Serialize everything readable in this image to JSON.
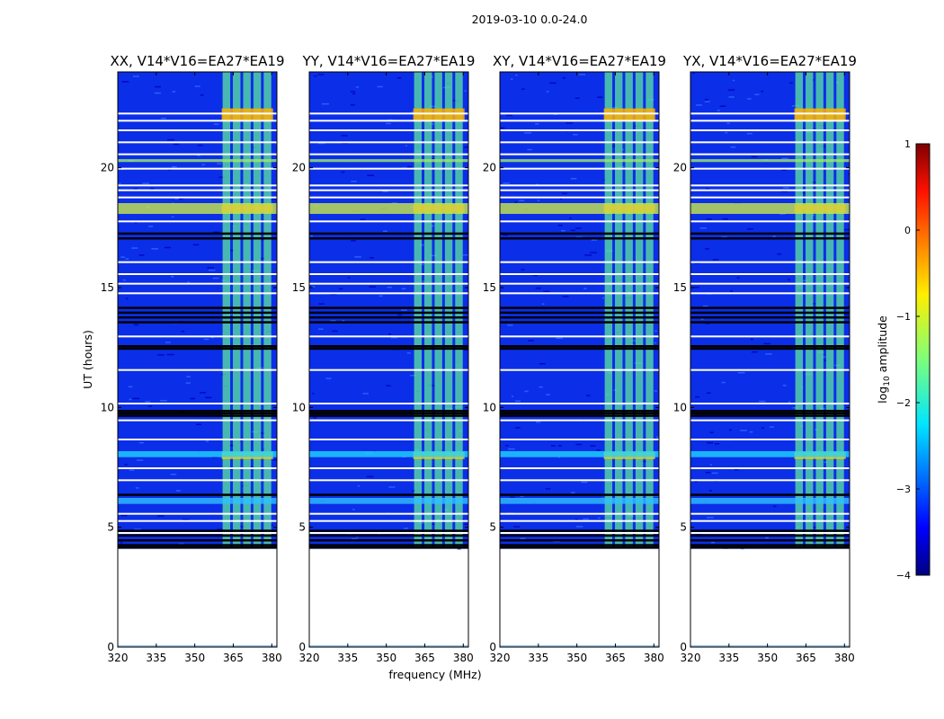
{
  "figure": {
    "suptitle": "2019-03-10 0.0-24.0",
    "xlabel": "frequency (MHz)",
    "ylabel": "UT (hours)"
  },
  "chart_data": {
    "type": "heatmap",
    "title": "2019-03-10 0.0-24.0",
    "xlabel": "frequency (MHz)",
    "ylabel": "UT (hours)",
    "xlim": [
      320,
      382
    ],
    "ylim": [
      0,
      24
    ],
    "x_ticks": [
      320,
      335,
      350,
      365,
      380
    ],
    "y_ticks": [
      0,
      5,
      10,
      15,
      20
    ],
    "data_start_hour": 4.1,
    "data_end_hour": 24.0,
    "panels": [
      {
        "title": "XX, V14*V16=EA27*EA19",
        "bright_band_mhz": [
          360.5,
          380.5
        ]
      },
      {
        "title": "YY, V14*V16=EA27*EA19",
        "bright_band_mhz": [
          360.5,
          380.5
        ]
      },
      {
        "title": "XY, V14*V16=EA27*EA19",
        "bright_band_mhz": [
          360.5,
          380.5
        ]
      },
      {
        "title": "YX, V14*V16=EA27*EA19",
        "bright_band_mhz": [
          360.5,
          380.5
        ]
      }
    ],
    "colorbar": {
      "label": "log10 amplitude",
      "label_main": "log",
      "label_sub": "10",
      "label_rest": " amplitude",
      "range": [
        -4,
        1
      ],
      "ticks": [
        1,
        0,
        -1,
        -2,
        -3,
        -4
      ],
      "tick_labels": [
        "1",
        "0",
        "−1",
        "−2",
        "−3",
        "−4"
      ],
      "colormap": "jet"
    }
  }
}
